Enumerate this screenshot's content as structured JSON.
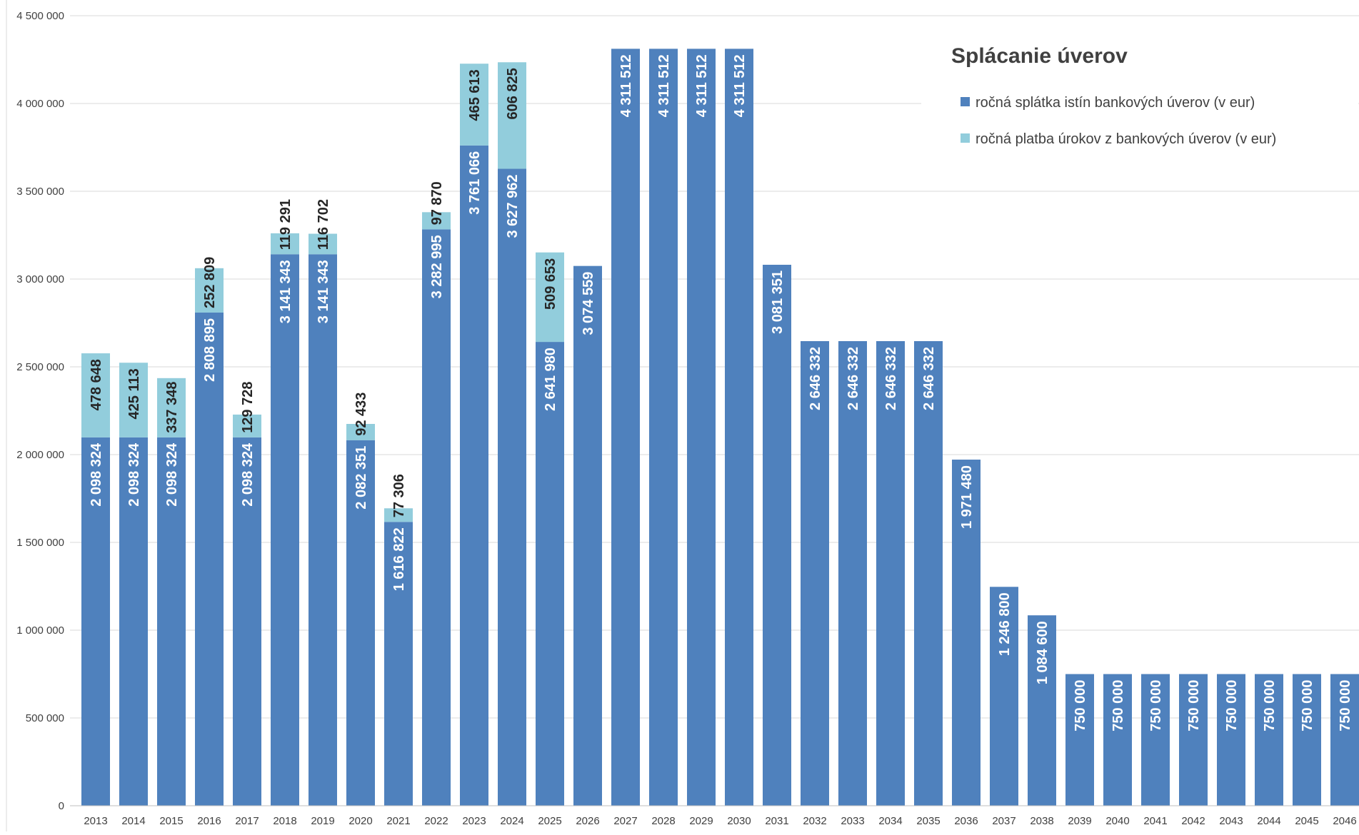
{
  "chart_data": {
    "type": "bar",
    "stacked": true,
    "title": "Splácanie úverov",
    "categories": [
      "2013",
      "2014",
      "2015",
      "2016",
      "2017",
      "2018",
      "2019",
      "2020",
      "2021",
      "2022",
      "2023",
      "2024",
      "2025",
      "2026",
      "2027",
      "2028",
      "2029",
      "2030",
      "2031",
      "2032",
      "2033",
      "2034",
      "2035",
      "2036",
      "2037",
      "2038",
      "2039",
      "2040",
      "2041",
      "2042",
      "2043",
      "2044",
      "2045",
      "2046"
    ],
    "series": [
      {
        "name": "ročná splátka istín bankových úverov (v eur)",
        "color": "#4f81bd",
        "values": [
          2098324,
          2098324,
          2098324,
          2808895,
          2098324,
          3141343,
          3141343,
          2082351,
          1616822,
          3282995,
          3761066,
          3627962,
          2641980,
          3074559,
          4311512,
          4311512,
          4311512,
          4311512,
          3081351,
          2646332,
          2646332,
          2646332,
          2646332,
          1971480,
          1246800,
          1084600,
          750000,
          750000,
          750000,
          750000,
          750000,
          750000,
          750000,
          750000
        ],
        "labels": [
          "2 098 324",
          "2 098 324",
          "2 098 324",
          "2 808 895",
          "2 098 324",
          "3 141 343",
          "3 141 343",
          "2 082 351",
          "1 616 822",
          "3 282 995",
          "3 761 066",
          "3 627 962",
          "2 641 980",
          "3 074 559",
          "4 311 512",
          "4 311 512",
          "4 311 512",
          "4 311 512",
          "3 081 351",
          "2 646 332",
          "2 646 332",
          "2 646 332",
          "2 646 332",
          "1 971 480",
          "1 246 800",
          "1 084 600",
          "750 000",
          "750 000",
          "750 000",
          "750 000",
          "750 000",
          "750 000",
          "750 000",
          "750 000"
        ]
      },
      {
        "name": "ročná platba úrokov z bankových úverov (v eur)",
        "color": "#92cddc",
        "values": [
          478648,
          425113,
          337348,
          252809,
          129728,
          119291,
          116702,
          92433,
          77306,
          97870,
          465613,
          606825,
          509653,
          null,
          null,
          null,
          null,
          null,
          null,
          null,
          null,
          null,
          null,
          null,
          null,
          null,
          null,
          null,
          null,
          null,
          null,
          null,
          null,
          null
        ],
        "labels": [
          "478 648",
          "425 113",
          "337 348",
          "252 809",
          "129 728",
          "119 291",
          "116 702",
          "92 433",
          "77 306",
          "97 870",
          "465 613",
          "606 825",
          "509 653",
          null,
          null,
          null,
          null,
          null,
          null,
          null,
          null,
          null,
          null,
          null,
          null,
          null,
          null,
          null,
          null,
          null,
          null,
          null,
          null,
          null
        ]
      }
    ],
    "ylim": [
      0,
      4500000
    ],
    "yticks": [
      0,
      500000,
      1000000,
      1500000,
      2000000,
      2500000,
      3000000,
      3500000,
      4000000,
      4500000
    ],
    "ytick_labels": [
      "0",
      "500 000",
      "1 000 000",
      "1 500 000",
      "2 000 000",
      "2 500 000",
      "3 000 000",
      "3 500 000",
      "4 000 000",
      "4 500 000"
    ],
    "grid": true,
    "legend_position": "top-right",
    "xlabel": "",
    "ylabel": ""
  }
}
